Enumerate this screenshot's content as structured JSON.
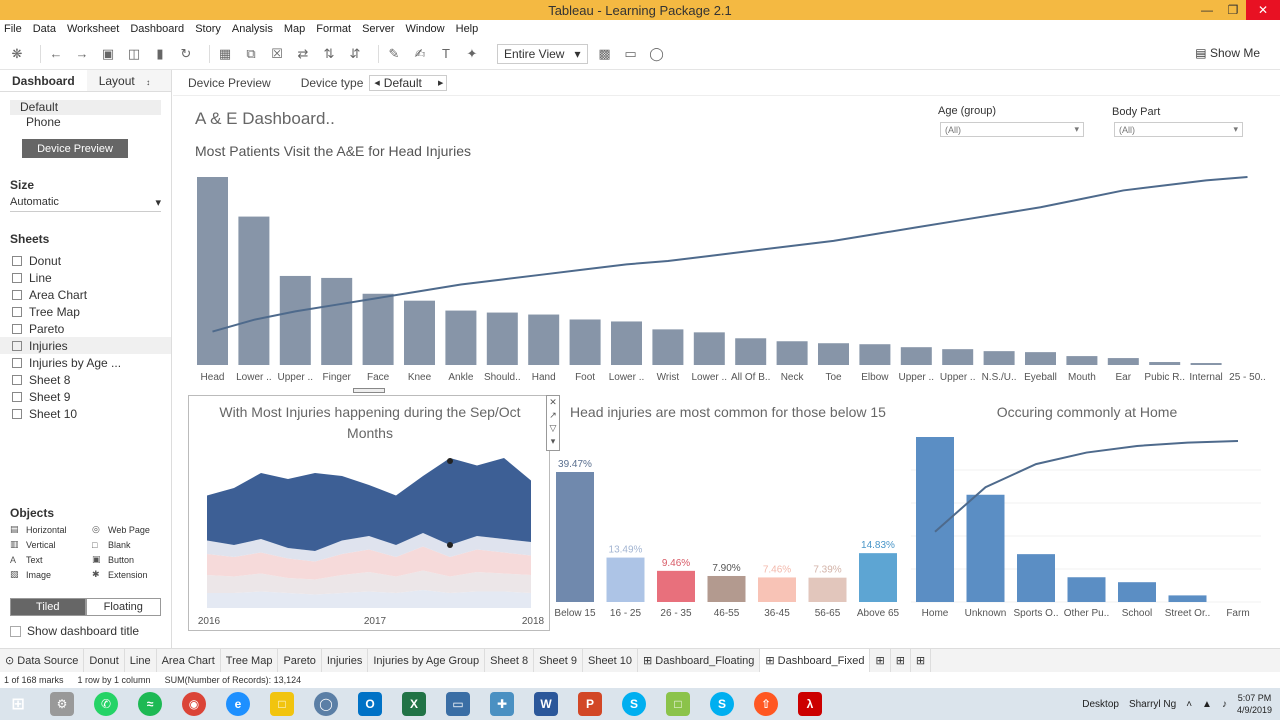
{
  "window": {
    "title": "Tableau - Learning Package 2.1"
  },
  "menu": [
    "File",
    "Data",
    "Worksheet",
    "Dashboard",
    "Story",
    "Analysis",
    "Map",
    "Format",
    "Server",
    "Window",
    "Help"
  ],
  "toolbar": {
    "view_select": "Entire View",
    "show_me": "Show Me"
  },
  "left_pane": {
    "tab_dashboard": "Dashboard",
    "tab_layout": "Layout",
    "devices": [
      "Default",
      "Phone"
    ],
    "device_preview_btn": "Device Preview",
    "size_header": "Size",
    "size_value": "Automatic",
    "sheets_header": "Sheets",
    "sheets": [
      "Donut",
      "Line",
      "Area Chart",
      "Tree Map",
      "Pareto",
      "Injuries",
      "Injuries by Age ...",
      "Sheet 8",
      "Sheet 9",
      "Sheet 10"
    ],
    "objects_header": "Objects",
    "objects": [
      {
        "label": "Horizontal",
        "icon": "▤"
      },
      {
        "label": "Web Page",
        "icon": "◎"
      },
      {
        "label": "Vertical",
        "icon": "▥"
      },
      {
        "label": "Blank",
        "icon": "□"
      },
      {
        "label": "Text",
        "icon": "A"
      },
      {
        "label": "Button",
        "icon": "▣"
      },
      {
        "label": "Image",
        "icon": "▧"
      },
      {
        "label": "Extension",
        "icon": "✱"
      }
    ],
    "tiled": "Tiled",
    "floating": "Floating",
    "show_title": "Show dashboard title"
  },
  "dash_bar": {
    "device_preview": "Device Preview",
    "device_type": "Device type",
    "device_value": "Default"
  },
  "dashboard": {
    "title": "A & E Dashboard..",
    "subtitle": "Most Patients Visit the A&E for Head Injuries",
    "filter_age_label": "Age (group)",
    "filter_age_value": "(All)",
    "filter_body_label": "Body Part",
    "filter_body_value": "(All)",
    "area_title": "With Most Injuries happening during the Sep/Oct Months",
    "age_title": "Head injuries are most common for those below 15",
    "home_title": "Occuring commonly at Home"
  },
  "chart_data": [
    {
      "type": "bar",
      "categories": [
        "Head",
        "Lower ..",
        "Upper ..",
        "Finger",
        "Face",
        "Knee",
        "Ankle",
        "Should..",
        "Hand",
        "Foot",
        "Lower ..",
        "Wrist",
        "Lower ..",
        "All Of B..",
        "Neck",
        "Toe",
        "Elbow",
        "Upper ..",
        "Upper ..",
        "N.S./U..",
        "Eyeball",
        "Mouth",
        "Ear",
        "Pubic R..",
        "Internal",
        "25 - 50.."
      ],
      "values": [
        190,
        150,
        90,
        88,
        72,
        65,
        55,
        53,
        51,
        46,
        44,
        36,
        33,
        27,
        24,
        22,
        21,
        18,
        16,
        14,
        13,
        9,
        7,
        3,
        2,
        0
      ],
      "pareto_line": [
        0.08,
        0.15,
        0.2,
        0.24,
        0.28,
        0.32,
        0.36,
        0.39,
        0.42,
        0.45,
        0.48,
        0.5,
        0.53,
        0.56,
        0.59,
        0.62,
        0.66,
        0.7,
        0.74,
        0.78,
        0.82,
        0.87,
        0.92,
        0.95,
        0.98,
        1.0
      ],
      "color": "#8795a8"
    },
    {
      "type": "area",
      "x_labels": [
        "2016",
        "2017",
        "2018"
      ],
      "bands": [
        {
          "color": "#3d5f95",
          "top": [
            0.75,
            0.8,
            0.9,
            0.86,
            0.9,
            0.88,
            0.82,
            0.75,
            0.88,
            1.0,
            0.95,
            1.0,
            0.85
          ],
          "bottom": [
            0.45,
            0.42,
            0.46,
            0.4,
            0.38,
            0.45,
            0.48,
            0.42,
            0.5,
            0.42,
            0.48,
            0.46,
            0.44
          ]
        },
        {
          "color": "#dfe3ee",
          "top": [
            0.45,
            0.42,
            0.46,
            0.4,
            0.38,
            0.45,
            0.48,
            0.42,
            0.5,
            0.42,
            0.48,
            0.46,
            0.44
          ],
          "bottom": [
            0.36,
            0.34,
            0.37,
            0.33,
            0.31,
            0.36,
            0.39,
            0.34,
            0.41,
            0.34,
            0.39,
            0.37,
            0.35
          ]
        },
        {
          "color": "#f6dada",
          "top": [
            0.36,
            0.34,
            0.37,
            0.33,
            0.31,
            0.36,
            0.39,
            0.34,
            0.41,
            0.34,
            0.39,
            0.37,
            0.35
          ],
          "bottom": [
            0.22,
            0.21,
            0.23,
            0.2,
            0.19,
            0.22,
            0.24,
            0.21,
            0.25,
            0.21,
            0.24,
            0.23,
            0.22
          ]
        },
        {
          "color": "#ece6e8",
          "top": [
            0.22,
            0.21,
            0.23,
            0.2,
            0.19,
            0.22,
            0.24,
            0.21,
            0.25,
            0.21,
            0.24,
            0.23,
            0.22
          ],
          "bottom": [
            0.1,
            0.1,
            0.11,
            0.1,
            0.09,
            0.1,
            0.11,
            0.1,
            0.12,
            0.1,
            0.11,
            0.11,
            0.1
          ]
        },
        {
          "color": "#e4e9f3",
          "top": [
            0.1,
            0.1,
            0.11,
            0.1,
            0.09,
            0.1,
            0.11,
            0.1,
            0.12,
            0.1,
            0.11,
            0.11,
            0.1
          ],
          "bottom": [
            0,
            0,
            0,
            0,
            0,
            0,
            0,
            0,
            0,
            0,
            0,
            0,
            0
          ]
        }
      ]
    },
    {
      "type": "bar",
      "categories": [
        "Below 15",
        "16 - 25",
        "26 - 35",
        "46-55",
        "36-45",
        "56-65",
        "Above 65"
      ],
      "values": [
        39.47,
        13.49,
        9.46,
        7.9,
        7.46,
        7.39,
        14.83
      ],
      "labels": [
        "39.47%",
        "13.49%",
        "9.46%",
        "7.90%",
        "7.46%",
        "7.39%",
        "14.83%"
      ],
      "colors": [
        "#7089ad",
        "#adc4e6",
        "#e8707c",
        "#b39a8f",
        "#f8c3b6",
        "#e2c6bc",
        "#5da5d3"
      ],
      "label_colors": [
        "#5a6f8f",
        "#a3b5d2",
        "#d85a66",
        "#555555",
        "#f3b8ab",
        "#d2b2a7",
        "#4996c8"
      ]
    },
    {
      "type": "bar",
      "categories": [
        "Home",
        "Unknown",
        "Sports O..",
        "Other Pu..",
        "School",
        "Street Or..",
        "Farm"
      ],
      "values": [
        100,
        65,
        29,
        15,
        12,
        4,
        0
      ],
      "pareto_line": [
        0.45,
        0.72,
        0.86,
        0.93,
        0.97,
        0.99,
        1.0
      ],
      "color": "#5b8ec4"
    }
  ],
  "sheet_tabs": [
    "Data Source",
    "Donut",
    "Line",
    "Area Chart",
    "Tree Map",
    "Pareto",
    "Injuries",
    "Injuries by Age Group",
    "Sheet 8",
    "Sheet 9",
    "Sheet 10",
    "Dashboard_Floating",
    "Dashboard_Fixed"
  ],
  "status": {
    "marks": "1 of 168 marks",
    "rows": "1 row by 1 column",
    "sum": "SUM(Number of Records): 13,124"
  },
  "taskbar": {
    "desktop": "Desktop",
    "user": "Sharryl Ng",
    "time": "5:07 PM",
    "date": "4/9/2019"
  }
}
